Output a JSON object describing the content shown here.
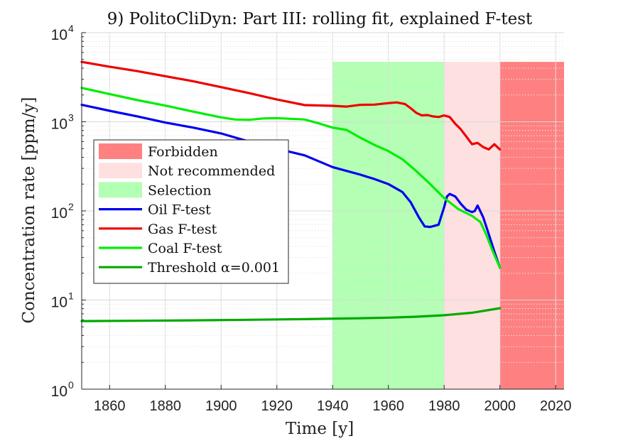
{
  "chart_data": {
    "type": "line",
    "title": "9) PolitoCliDyn: Part III: rolling fit, explained F-test",
    "xlabel": "Time [y]",
    "ylabel": "Concentration rate [ppm/y]",
    "xlim": [
      1850,
      2023
    ],
    "ylim": [
      1,
      10000
    ],
    "yscale": "log",
    "xticks": [
      1860,
      1880,
      1900,
      1920,
      1940,
      1960,
      1980,
      2000,
      2020
    ],
    "yticks": [
      {
        "value": 1,
        "base": "10",
        "exp": "0"
      },
      {
        "value": 10,
        "base": "10",
        "exp": "1"
      },
      {
        "value": 100,
        "base": "10",
        "exp": "2"
      },
      {
        "value": 1000,
        "base": "10",
        "exp": "3"
      },
      {
        "value": 10000,
        "base": "10",
        "exp": "4"
      }
    ],
    "grid": true,
    "legend_position": "left",
    "regions": [
      {
        "name": "Selection",
        "x0": 1940,
        "x1": 1980,
        "top": 4700,
        "color": "#b3ffb3"
      },
      {
        "name": "Not recommended",
        "x0": 1980,
        "x1": 2000,
        "top": 4700,
        "color": "#ffe0e0"
      },
      {
        "name": "Forbidden",
        "x0": 2000,
        "x1": 2023,
        "top": 4700,
        "color": "#ff8080"
      }
    ],
    "series": [
      {
        "name": "Oil F-test",
        "color": "#0000ee",
        "x": [
          1850,
          1860,
          1870,
          1880,
          1890,
          1900,
          1910,
          1920,
          1930,
          1940,
          1950,
          1955,
          1960,
          1965,
          1968,
          1971,
          1973,
          1975,
          1978,
          1980,
          1981,
          1982,
          1984,
          1986,
          1988,
          1990,
          1991,
          1992,
          1994,
          1996,
          1998,
          2000
        ],
        "y": [
          1550,
          1330,
          1150,
          980,
          860,
          740,
          600,
          500,
          420,
          310,
          255,
          228,
          200,
          163,
          125,
          84,
          67,
          66,
          70,
          110,
          145,
          155,
          145,
          120,
          103,
          97,
          100,
          115,
          85,
          55,
          35,
          23
        ]
      },
      {
        "name": "Gas F-test",
        "color": "#ee0000",
        "x": [
          1850,
          1860,
          1870,
          1880,
          1890,
          1900,
          1910,
          1920,
          1930,
          1940,
          1945,
          1950,
          1955,
          1960,
          1963,
          1966,
          1968,
          1970,
          1972,
          1974,
          1976,
          1978,
          1980,
          1982,
          1984,
          1986,
          1988,
          1990,
          1992,
          1994,
          1996,
          1998,
          2000
        ],
        "y": [
          4700,
          4150,
          3700,
          3250,
          2850,
          2450,
          2100,
          1780,
          1540,
          1510,
          1480,
          1550,
          1560,
          1620,
          1650,
          1580,
          1420,
          1260,
          1180,
          1190,
          1150,
          1130,
          1180,
          1130,
          950,
          820,
          680,
          560,
          580,
          520,
          490,
          560,
          490
        ]
      },
      {
        "name": "Coal F-test",
        "color": "#00ee00",
        "x": [
          1850,
          1860,
          1870,
          1880,
          1890,
          1900,
          1905,
          1910,
          1915,
          1920,
          1925,
          1930,
          1935,
          1940,
          1945,
          1950,
          1955,
          1960,
          1965,
          1970,
          1975,
          1980,
          1985,
          1990,
          1993,
          1995,
          1997,
          2000
        ],
        "y": [
          2400,
          2050,
          1750,
          1520,
          1300,
          1120,
          1060,
          1050,
          1090,
          1100,
          1080,
          1060,
          960,
          860,
          810,
          660,
          550,
          470,
          380,
          280,
          200,
          140,
          105,
          88,
          75,
          55,
          38,
          23
        ]
      },
      {
        "name": "Threshold α=0.001",
        "color": "#00aa00",
        "x": [
          1850,
          1870,
          1890,
          1910,
          1930,
          1950,
          1960,
          1970,
          1980,
          1990,
          2000
        ],
        "y": [
          5.8,
          5.85,
          5.92,
          6.0,
          6.1,
          6.25,
          6.35,
          6.5,
          6.75,
          7.2,
          8.1
        ]
      }
    ],
    "legend": [
      {
        "label": "Forbidden",
        "kind": "patch",
        "color": "#ff8080"
      },
      {
        "label": "Not recommended",
        "kind": "patch",
        "color": "#ffe0e0"
      },
      {
        "label": "Selection",
        "kind": "patch",
        "color": "#b3ffb3"
      },
      {
        "label": "Oil F-test",
        "kind": "line",
        "color": "#0000ee"
      },
      {
        "label": "Gas F-test",
        "kind": "line",
        "color": "#ee0000"
      },
      {
        "label": "Coal F-test",
        "kind": "line",
        "color": "#00ee00"
      },
      {
        "label": "Threshold α=0.001",
        "kind": "line",
        "color": "#00aa00"
      }
    ]
  }
}
